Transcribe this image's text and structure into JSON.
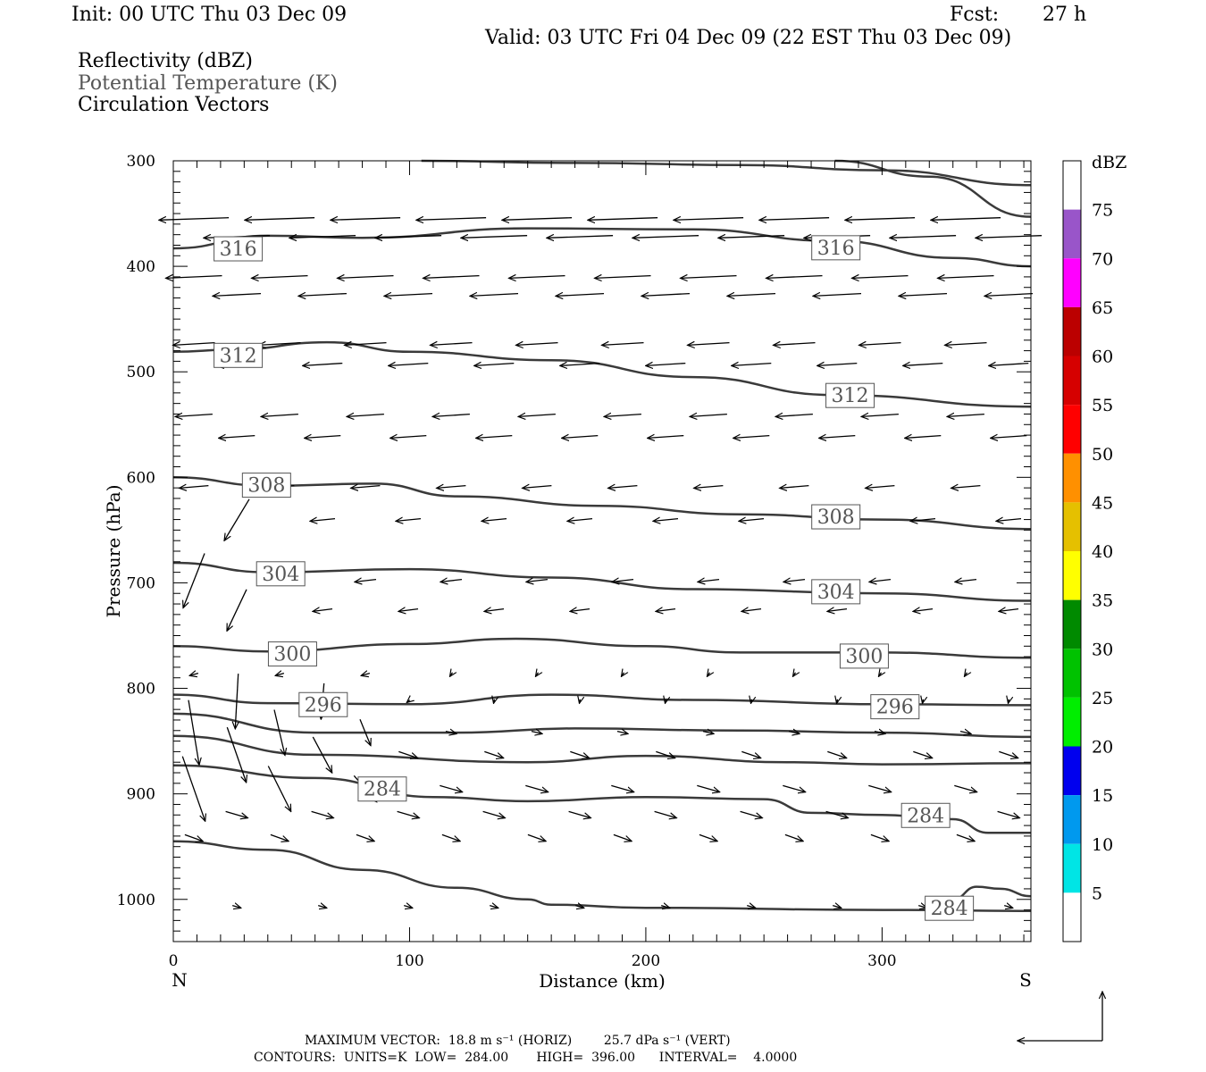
{
  "header": {
    "init": "Init: 00 UTC Thu 03 Dec 09",
    "fcst_label": "Fcst:",
    "fcst_value": "27 h",
    "valid": "Valid: 03 UTC Fri 04 Dec 09 (22 EST Thu 03 Dec 09)"
  },
  "fields": {
    "reflectivity": "Reflectivity (dBZ)",
    "potential_temperature": "Potential Temperature (K)",
    "circulation": "Circulation Vectors"
  },
  "chart_data": {
    "type": "line",
    "xlabel": "Distance (km)",
    "ylabel": "Pressure (hPa)",
    "xlim": [
      0,
      363
    ],
    "ylim": [
      1040,
      300
    ],
    "x_ticks": [
      "0",
      "100",
      "200",
      "300"
    ],
    "y_ticks": [
      "300",
      "400",
      "500",
      "600",
      "700",
      "800",
      "900",
      "1000"
    ],
    "x_end_labels": {
      "left": "N",
      "right": "S"
    },
    "contour_labels": [
      {
        "text": "316",
        "x": 18,
        "p": 383
      },
      {
        "text": "316",
        "x": 271,
        "p": 382
      },
      {
        "text": "312",
        "x": 18,
        "p": 484
      },
      {
        "text": "312",
        "x": 277,
        "p": 522
      },
      {
        "text": "308",
        "x": 30,
        "p": 607
      },
      {
        "text": "308",
        "x": 271,
        "p": 637
      },
      {
        "text": "304",
        "x": 36,
        "p": 691
      },
      {
        "text": "304",
        "x": 271,
        "p": 708
      },
      {
        "text": "300",
        "x": 41,
        "p": 767
      },
      {
        "text": "300",
        "x": 283,
        "p": 769
      },
      {
        "text": "296",
        "x": 54,
        "p": 815
      },
      {
        "text": "296",
        "x": 296,
        "p": 817
      },
      {
        "text": "284",
        "x": 79,
        "p": 895
      },
      {
        "text": "284",
        "x": 309,
        "p": 920
      },
      {
        "text": "284",
        "x": 319,
        "p": 1008
      }
    ],
    "series": [
      {
        "values": [
          [
            105,
            300
          ],
          [
            170,
            302
          ],
          [
            240,
            304
          ],
          [
            300,
            309
          ],
          [
            363,
            323
          ]
        ]
      },
      {
        "values": [
          [
            280,
            300
          ],
          [
            320,
            315
          ],
          [
            363,
            353
          ]
        ]
      },
      {
        "values": [
          [
            0,
            383
          ],
          [
            40,
            371
          ],
          [
            80,
            373
          ],
          [
            150,
            364
          ],
          [
            220,
            365
          ],
          [
            280,
            376
          ],
          [
            330,
            392
          ],
          [
            363,
            400
          ]
        ]
      },
      {
        "values": [
          [
            0,
            481
          ],
          [
            25,
            479
          ],
          [
            65,
            472
          ],
          [
            100,
            481
          ],
          [
            160,
            489
          ],
          [
            220,
            505
          ],
          [
            280,
            522
          ],
          [
            363,
            533
          ]
        ]
      },
      {
        "values": [
          [
            0,
            600
          ],
          [
            40,
            608
          ],
          [
            85,
            606
          ],
          [
            120,
            618
          ],
          [
            180,
            627
          ],
          [
            240,
            635
          ],
          [
            300,
            640
          ],
          [
            363,
            649
          ]
        ]
      },
      {
        "values": [
          [
            0,
            681
          ],
          [
            40,
            690
          ],
          [
            100,
            687
          ],
          [
            160,
            695
          ],
          [
            220,
            706
          ],
          [
            300,
            710
          ],
          [
            363,
            717
          ]
        ]
      },
      {
        "values": [
          [
            0,
            760
          ],
          [
            40,
            765
          ],
          [
            100,
            758
          ],
          [
            145,
            753
          ],
          [
            200,
            760
          ],
          [
            240,
            766
          ],
          [
            300,
            766
          ],
          [
            363,
            771
          ]
        ]
      },
      {
        "values": [
          [
            0,
            806
          ],
          [
            40,
            814
          ],
          [
            100,
            815
          ],
          [
            160,
            806
          ],
          [
            220,
            811
          ],
          [
            300,
            815
          ],
          [
            363,
            816
          ]
        ]
      },
      {
        "values": [
          [
            0,
            824
          ],
          [
            60,
            842
          ],
          [
            120,
            842
          ],
          [
            170,
            838
          ],
          [
            240,
            840
          ],
          [
            300,
            842
          ],
          [
            363,
            846
          ]
        ]
      },
      {
        "values": [
          [
            0,
            845
          ],
          [
            60,
            863
          ],
          [
            150,
            870
          ],
          [
            200,
            864
          ],
          [
            260,
            870
          ],
          [
            300,
            872
          ],
          [
            363,
            871
          ]
        ]
      },
      {
        "values": [
          [
            0,
            873
          ],
          [
            60,
            885
          ],
          [
            110,
            903
          ],
          [
            150,
            907
          ],
          [
            200,
            903
          ],
          [
            250,
            905
          ],
          [
            270,
            918
          ],
          [
            300,
            920
          ],
          [
            330,
            924
          ],
          [
            345,
            937
          ],
          [
            363,
            937
          ]
        ]
      },
      {
        "values": [
          [
            0,
            945
          ],
          [
            40,
            953
          ],
          [
            80,
            972
          ],
          [
            120,
            989
          ],
          [
            150,
            1000
          ],
          [
            160,
            1005
          ],
          [
            200,
            1008
          ],
          [
            300,
            1010
          ],
          [
            363,
            1011
          ]
        ]
      },
      {
        "values": [
          [
            330,
            1000
          ],
          [
            340,
            988
          ],
          [
            350,
            990
          ],
          [
            363,
            997
          ]
        ]
      }
    ],
    "legend": {
      "title": "dBZ",
      "labels": [
        "5",
        "10",
        "15",
        "20",
        "25",
        "30",
        "35",
        "40",
        "45",
        "50",
        "55",
        "60",
        "65",
        "70",
        "75"
      ],
      "colors": [
        "#ffffff",
        "#00e5e5",
        "#0099ee",
        "#0000ee",
        "#00ee00",
        "#00c200",
        "#008a00",
        "#ffff00",
        "#e5c000",
        "#ff9000",
        "#ff0000",
        "#d60000",
        "#bb0000",
        "#ff00ff",
        "#9955c9",
        "#ffffff"
      ]
    }
  },
  "footer": {
    "line1": "MAXIMUM VECTOR:  18.8 m s⁻¹ (HORIZ)        25.7 dPa s⁻¹ (VERT)",
    "line2": "CONTOURS:  UNITS=K  LOW=  284.00       HIGH=  396.00      INTERVAL=    4.0000"
  }
}
